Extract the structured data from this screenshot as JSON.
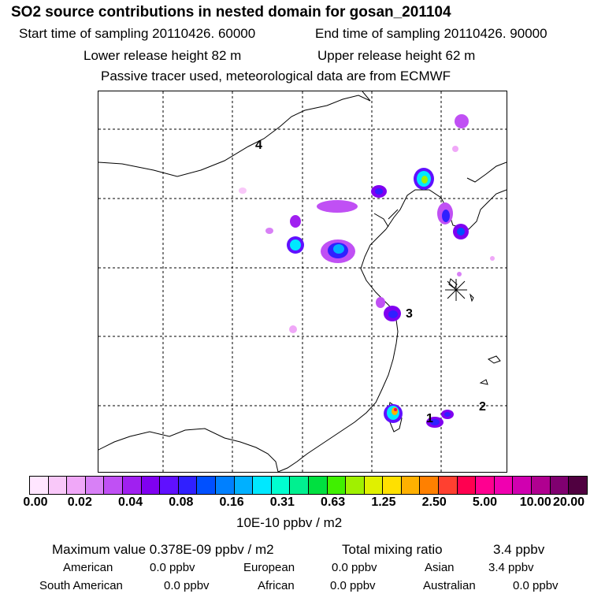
{
  "title": "SO2 source contributions in nested domain for gosan_201104",
  "header": {
    "start": "Start time of sampling 20110426. 60000",
    "end": "End time of sampling 20110426. 90000",
    "lower": "Lower release height   82 m",
    "upper": "Upper release height   62 m",
    "note": "Passive tracer used, meteorological data are from ECMWF"
  },
  "map": {
    "labels": [
      "4",
      "3",
      "1",
      "2"
    ]
  },
  "colorbar": {
    "colors": [
      "#ffe6ff",
      "#f9c8f9",
      "#f0a8f8",
      "#d880f6",
      "#c050f4",
      "#a020f0",
      "#8000f0",
      "#6010ff",
      "#3020ff",
      "#0050ff",
      "#0080ff",
      "#00b0ff",
      "#00e8ff",
      "#00ffd0",
      "#00f090",
      "#00e040",
      "#40f000",
      "#a0f000",
      "#e0f000",
      "#ffe000",
      "#ffb000",
      "#ff8000",
      "#ff4030",
      "#ff0050",
      "#ff0090",
      "#f000b0",
      "#d000b0",
      "#b00090",
      "#800070",
      "#500040"
    ],
    "ticks": [
      "0.00",
      "0.02",
      "0.04",
      "0.08",
      "0.16",
      "0.31",
      "0.63",
      "1.25",
      "2.50",
      "5.00",
      "10.00",
      "20.00"
    ],
    "unit": "10E-10 ppbv / m2"
  },
  "stats": {
    "max": "Maximum value  0.378E-09 ppbv / m2",
    "total_label": "Total mixing ratio",
    "total_value": "3.4 ppbv",
    "american_label": "American",
    "american_value": "0.0 ppbv",
    "european_label": "European",
    "european_value": "0.0 ppbv",
    "asian_label": "Asian",
    "asian_value": "3.4 ppbv",
    "south_american_label": "South American",
    "south_american_value": "0.0 ppbv",
    "african_label": "African",
    "african_value": "0.0 ppbv",
    "australian_label": "Australian",
    "australian_value": "0.0 ppbv"
  }
}
